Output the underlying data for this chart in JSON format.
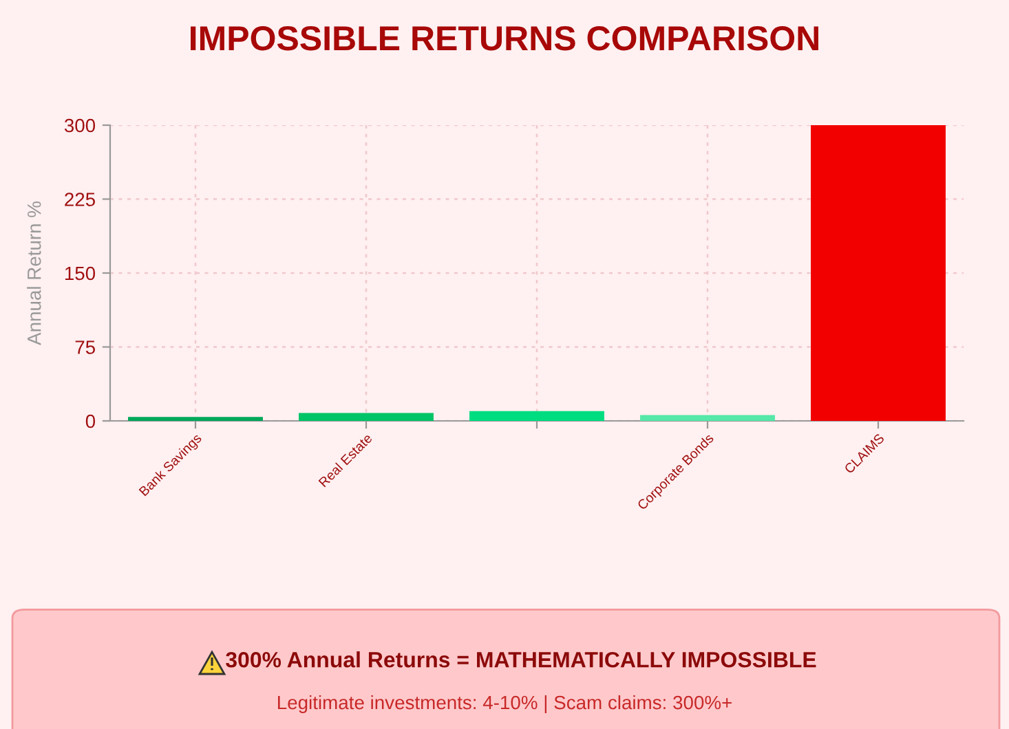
{
  "chart_data": {
    "type": "bar",
    "title": "IMPOSSIBLE RETURNS COMPARISON",
    "ylabel": "Annual Return %",
    "categories": [
      "Bank Savings",
      "Real Estate",
      null,
      "Corporate Bonds",
      "CLAIMS"
    ],
    "values": [
      4,
      8,
      10,
      6,
      300
    ],
    "colors": [
      "#00a85a",
      "#00c467",
      "#00dd80",
      "#55e8a8",
      "#f20000"
    ],
    "ylim": [
      0,
      300
    ],
    "yticks": [
      0,
      75,
      150,
      225,
      300
    ],
    "grid": true,
    "annotations": [
      "300% Annual Returns = MATHEMATICALLY IMPOSSIBLE",
      "Legitimate investments: 4-10% | Scam claims: 300%+"
    ]
  }
}
